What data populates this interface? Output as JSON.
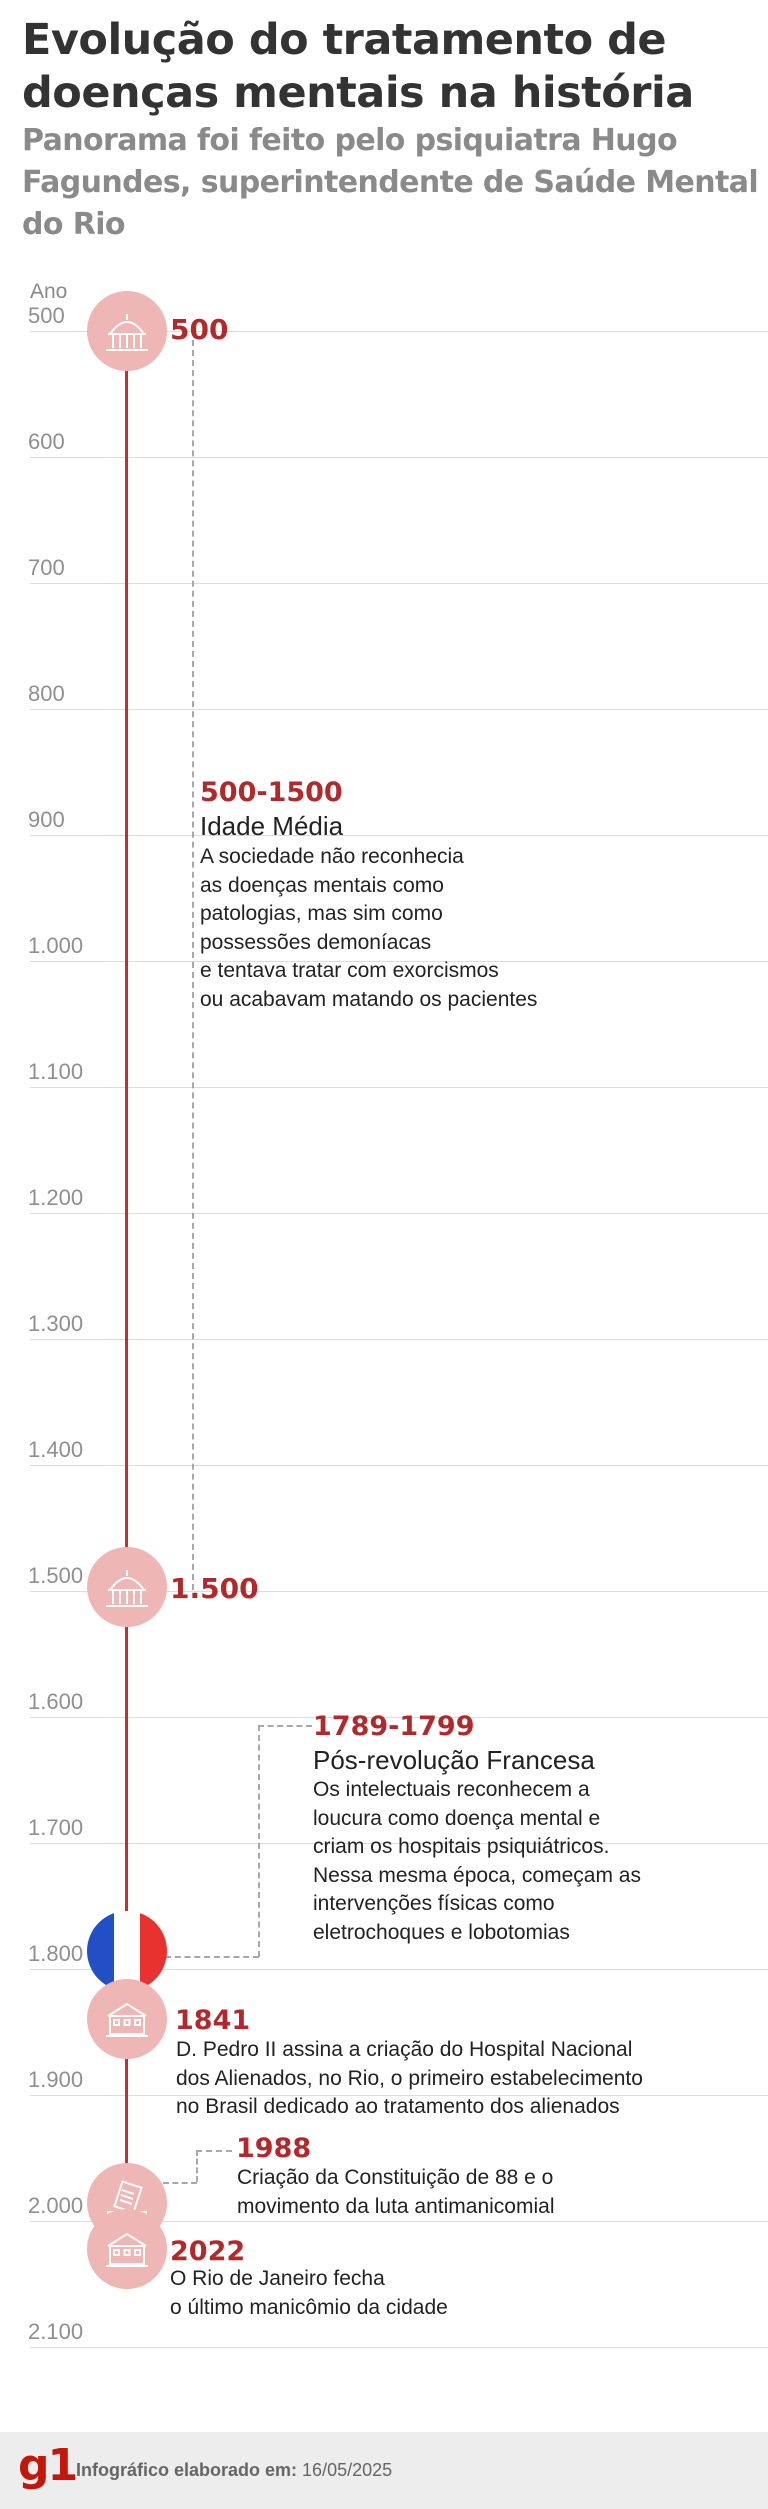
{
  "header": {
    "title": "Evolução do tratamento de doenças mentais na história",
    "subtitle": "Panorama foi feito pelo psiquiatra Hugo Fagundes, superintendente de Saúde Mental do Rio"
  },
  "axis": {
    "title": "Ano",
    "ticks": [
      "500",
      "600",
      "700",
      "800",
      "900",
      "1.000",
      "1.100",
      "1.200",
      "1.300",
      "1.400",
      "1.500",
      "1.600",
      "1.700",
      "1.800",
      "1.900",
      "2.000",
      "2.100"
    ]
  },
  "markers": [
    {
      "year": 500,
      "label": "500",
      "icon": "palace-icon"
    },
    {
      "year": 1500,
      "label": "1.500",
      "icon": "palace-icon"
    },
    {
      "year": 1800,
      "icon": "france-flag-icon"
    },
    {
      "year": 1841,
      "icon": "hospital-icon"
    },
    {
      "year": 1988,
      "icon": "constitution-document-icon"
    },
    {
      "year": 2022,
      "icon": "hospital-icon"
    }
  ],
  "events": {
    "idade_media": {
      "period": "500-1500",
      "title": "Idade Média",
      "description": "A sociedade não reconhecia\nas doenças mentais como\npatologias, mas sim como\npossessões demoníacas\ne tentava tratar com exorcismos\nou acabavam matando os pacientes"
    },
    "revolucao": {
      "period": "1789-1799",
      "title": "Pós-revolução Francesa",
      "description": "Os intelectuais reconhecem a\nloucura como doença mental e\ncriam os hospitais psiquiátricos.\nNessa mesma época, começam as\nintervenções físicas como\neletrochoques e lobotomias"
    },
    "e1841": {
      "year": "1841",
      "description": "D. Pedro II assina a criação do Hospital Nacional\ndos Alienados, no Rio, o primeiro estabelecimento\nno Brasil dedicado ao tratamento dos alienados"
    },
    "e1988": {
      "year": "1988",
      "description": "Criação da Constituição de 88 e o\nmovimento da luta antimanicomial"
    },
    "e2022": {
      "year": "2022",
      "description": "O Rio de Janeiro fecha\no último manicômio da cidade"
    }
  },
  "colors": {
    "accent": "#b2292b",
    "line": "#c0312f",
    "icon_bg": "#eeb6b4"
  },
  "footer": {
    "logo": "g1",
    "credit_label": "Infográfico elaborado em:",
    "credit_date": "16/05/2025"
  }
}
